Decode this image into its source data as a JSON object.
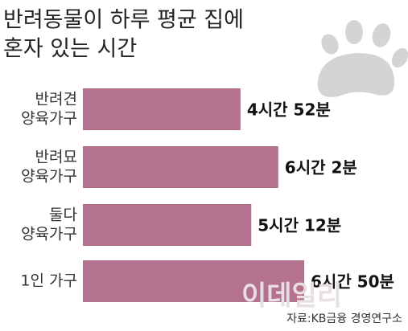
{
  "chart_data": {
    "type": "bar",
    "orientation": "horizontal",
    "title": [
      "반려동물이 하루 평균 집에",
      "혼자 있는 시간"
    ],
    "categories": [
      [
        "반려견",
        "양육가구"
      ],
      [
        "반려묘",
        "양육가구"
      ],
      [
        "둘다",
        "양육가구"
      ],
      [
        "1인 가구"
      ]
    ],
    "values": [
      292,
      362,
      312,
      410
    ],
    "value_labels": [
      "4시간 52분",
      "6시간 2분",
      "5시간 12분",
      "6시간 50분"
    ],
    "color": "#b5728f",
    "source": "자료:KB금융 경영연구소",
    "watermark": "이데일리"
  }
}
